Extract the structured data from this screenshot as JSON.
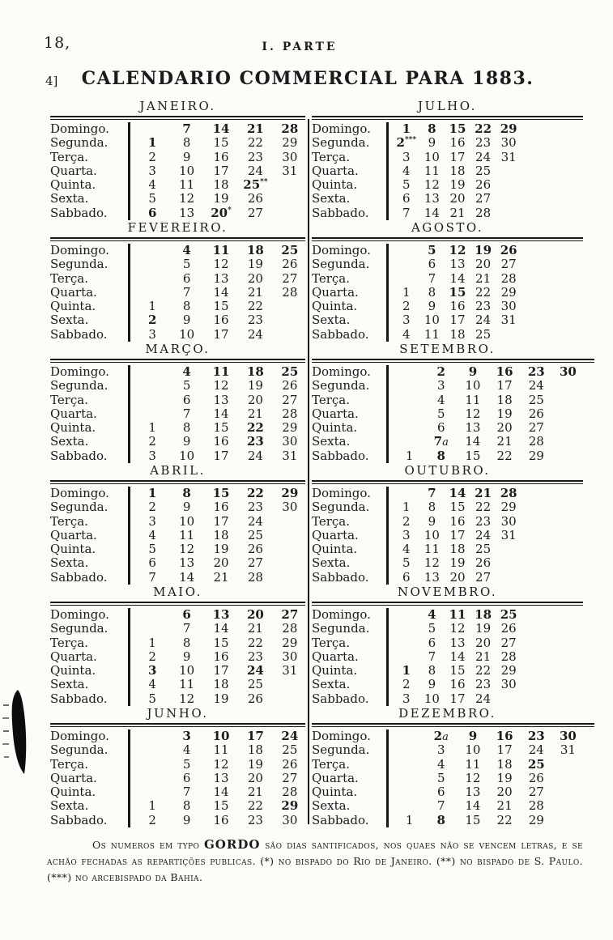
{
  "page": {
    "page_number": "18,",
    "part_header": "I.  PARTE",
    "margin_mark": "4]",
    "title": "CALENDARIO COMMERCIAL PARA 1883."
  },
  "calendar": {
    "day_labels": [
      "Domingo.",
      "Segunda.",
      "Terça.",
      "Quarta.",
      "Quinta.",
      "Sexta.",
      "Sabbado."
    ],
    "months": [
      {
        "id": "janeiro",
        "name": "JANEIRO.",
        "column": "left",
        "cols": 5,
        "rows": [
          [
            "",
            {
              "t": "7",
              "b": true
            },
            {
              "t": "14",
              "b": true
            },
            {
              "t": "21",
              "b": true
            },
            {
              "t": "28",
              "b": true
            }
          ],
          [
            {
              "t": "1",
              "b": true
            },
            "8",
            "15",
            "22",
            "29"
          ],
          [
            "2",
            "9",
            "16",
            "23",
            "30"
          ],
          [
            "3",
            "10",
            "17",
            "24",
            "31"
          ],
          [
            "4",
            "11",
            "18",
            {
              "t": "25",
              "b": true,
              "sup": "**"
            },
            ""
          ],
          [
            "5",
            "12",
            "19",
            "26",
            ""
          ],
          [
            {
              "t": "6",
              "b": true
            },
            "13",
            {
              "t": "20",
              "b": true,
              "sup": "*"
            },
            "27",
            ""
          ]
        ]
      },
      {
        "id": "fevereiro",
        "name": "FEVEREIRO.",
        "column": "left",
        "cols": 5,
        "rows": [
          [
            "",
            {
              "t": "4",
              "b": true
            },
            {
              "t": "11",
              "b": true
            },
            {
              "t": "18",
              "b": true
            },
            {
              "t": "25",
              "b": true
            }
          ],
          [
            "",
            "5",
            "12",
            "19",
            "26"
          ],
          [
            "",
            "6",
            "13",
            "20",
            "27"
          ],
          [
            "",
            "7",
            "14",
            "21",
            "28"
          ],
          [
            "1",
            "8",
            "15",
            "22",
            ""
          ],
          [
            {
              "t": "2",
              "b": true
            },
            "9",
            "16",
            "23",
            ""
          ],
          [
            "3",
            "10",
            "17",
            "24",
            ""
          ]
        ]
      },
      {
        "id": "marco",
        "name": "MARÇO.",
        "column": "left",
        "cols": 5,
        "rows": [
          [
            "",
            {
              "t": "4",
              "b": true
            },
            {
              "t": "11",
              "b": true
            },
            {
              "t": "18",
              "b": true
            },
            {
              "t": "25",
              "b": true
            }
          ],
          [
            "",
            "5",
            "12",
            "19",
            "26"
          ],
          [
            "",
            "6",
            "13",
            "20",
            "27"
          ],
          [
            "",
            "7",
            "14",
            "21",
            "28"
          ],
          [
            "1",
            "8",
            "15",
            {
              "t": "22",
              "b": true
            },
            "29"
          ],
          [
            "2",
            "9",
            "16",
            {
              "t": "23",
              "b": true
            },
            "30"
          ],
          [
            "3",
            "10",
            "17",
            "24",
            "31"
          ]
        ]
      },
      {
        "id": "abril",
        "name": "ABRIL.",
        "column": "left",
        "cols": 5,
        "rows": [
          [
            {
              "t": "1",
              "b": true
            },
            {
              "t": "8",
              "b": true
            },
            {
              "t": "15",
              "b": true
            },
            {
              "t": "22",
              "b": true
            },
            {
              "t": "29",
              "b": true
            }
          ],
          [
            "2",
            "9",
            "16",
            "23",
            "30"
          ],
          [
            "3",
            "10",
            "17",
            "24",
            ""
          ],
          [
            "4",
            "11",
            "18",
            "25",
            ""
          ],
          [
            "5",
            "12",
            "19",
            "26",
            ""
          ],
          [
            "6",
            "13",
            "20",
            "27",
            ""
          ],
          [
            "7",
            "14",
            "21",
            "28",
            ""
          ]
        ]
      },
      {
        "id": "maio",
        "name": "MAIO.",
        "column": "left",
        "cols": 5,
        "rows": [
          [
            "",
            {
              "t": "6",
              "b": true
            },
            {
              "t": "13",
              "b": true
            },
            {
              "t": "20",
              "b": true
            },
            {
              "t": "27",
              "b": true
            }
          ],
          [
            "",
            "7",
            "14",
            "21",
            "28"
          ],
          [
            "1",
            "8",
            "15",
            "22",
            "29"
          ],
          [
            "2",
            "9",
            "16",
            "23",
            "30"
          ],
          [
            {
              "t": "3",
              "b": true
            },
            "10",
            "17",
            {
              "t": "24",
              "b": true
            },
            "31"
          ],
          [
            "4",
            "11",
            "18",
            "25",
            ""
          ],
          [
            "5",
            "12",
            "19",
            "26",
            ""
          ]
        ]
      },
      {
        "id": "junho",
        "name": "JUNHO.",
        "column": "left",
        "cols": 5,
        "rows": [
          [
            "",
            {
              "t": "3",
              "b": true
            },
            {
              "t": "10",
              "b": true
            },
            {
              "t": "17",
              "b": true
            },
            {
              "t": "24",
              "b": true
            }
          ],
          [
            "",
            "4",
            "11",
            "18",
            "25"
          ],
          [
            "",
            "5",
            "12",
            "19",
            "26"
          ],
          [
            "",
            "6",
            "13",
            "20",
            "27"
          ],
          [
            "",
            "7",
            "14",
            "21",
            "28"
          ],
          [
            "1",
            "8",
            "15",
            "22",
            {
              "t": "29",
              "b": true
            }
          ],
          [
            "2",
            "9",
            "16",
            "23",
            "30"
          ]
        ]
      },
      {
        "id": "julho",
        "name": "JULHO.",
        "column": "right",
        "cols": 5,
        "rows": [
          [
            {
              "t": "1",
              "b": true
            },
            {
              "t": "8",
              "b": true
            },
            {
              "t": "15",
              "b": true
            },
            {
              "t": "22",
              "b": true
            },
            {
              "t": "29",
              "b": true
            }
          ],
          [
            {
              "t": "2",
              "b": true,
              "sup": "***"
            },
            "9",
            "16",
            "23",
            "30"
          ],
          [
            "3",
            "10",
            "17",
            "24",
            "31"
          ],
          [
            "4",
            "11",
            "18",
            "25",
            ""
          ],
          [
            "5",
            "12",
            "19",
            "26",
            ""
          ],
          [
            "6",
            "13",
            "20",
            "27",
            ""
          ],
          [
            "7",
            "14",
            "21",
            "28",
            ""
          ]
        ]
      },
      {
        "id": "agosto",
        "name": "AGOSTO.",
        "column": "right",
        "cols": 5,
        "rows": [
          [
            "",
            {
              "t": "5",
              "b": true
            },
            {
              "t": "12",
              "b": true
            },
            {
              "t": "19",
              "b": true
            },
            {
              "t": "26",
              "b": true
            }
          ],
          [
            "",
            "6",
            "13",
            "20",
            "27"
          ],
          [
            "",
            "7",
            "14",
            "21",
            "28"
          ],
          [
            "1",
            "8",
            {
              "t": "15",
              "b": true
            },
            "22",
            "29"
          ],
          [
            "2",
            "9",
            "16",
            "23",
            "30"
          ],
          [
            "3",
            "10",
            "17",
            "24",
            "31"
          ],
          [
            "4",
            "11",
            "18",
            "25",
            ""
          ]
        ]
      },
      {
        "id": "setembro",
        "name": "SETEMBRO.",
        "column": "right",
        "cols": 6,
        "rows": [
          [
            "",
            {
              "t": "2",
              "b": true
            },
            {
              "t": "9",
              "b": true
            },
            {
              "t": "16",
              "b": true
            },
            {
              "t": "23",
              "b": true
            },
            {
              "t": "30",
              "b": true
            }
          ],
          [
            "",
            "3",
            "10",
            "17",
            "24",
            ""
          ],
          [
            "",
            "4",
            "11",
            "18",
            "25",
            ""
          ],
          [
            "",
            "5",
            "12",
            "19",
            "26",
            ""
          ],
          [
            "",
            "6",
            "13",
            "20",
            "27",
            ""
          ],
          [
            "",
            {
              "t": "7",
              "b": true,
              "it": "a"
            },
            "14",
            "21",
            "28",
            ""
          ],
          [
            "1",
            {
              "t": "8",
              "b": true
            },
            "15",
            "22",
            "29",
            ""
          ]
        ]
      },
      {
        "id": "outubro",
        "name": "OUTUBRO.",
        "column": "right",
        "cols": 5,
        "rows": [
          [
            "",
            {
              "t": "7",
              "b": true
            },
            {
              "t": "14",
              "b": true
            },
            {
              "t": "21",
              "b": true
            },
            {
              "t": "28",
              "b": true
            }
          ],
          [
            "1",
            "8",
            "15",
            "22",
            "29"
          ],
          [
            "2",
            "9",
            "16",
            "23",
            "30"
          ],
          [
            "3",
            "10",
            "17",
            "24",
            "31"
          ],
          [
            "4",
            "11",
            "18",
            "25",
            ""
          ],
          [
            "5",
            "12",
            "19",
            "26",
            ""
          ],
          [
            "6",
            "13",
            "20",
            "27",
            ""
          ]
        ]
      },
      {
        "id": "novembro",
        "name": "NOVEMBRO.",
        "column": "right",
        "cols": 5,
        "rows": [
          [
            "",
            {
              "t": "4",
              "b": true
            },
            {
              "t": "11",
              "b": true
            },
            {
              "t": "18",
              "b": true
            },
            {
              "t": "25",
              "b": true
            }
          ],
          [
            "",
            "5",
            "12",
            "19",
            "26"
          ],
          [
            "",
            "6",
            "13",
            "20",
            "27"
          ],
          [
            "",
            "7",
            "14",
            "21",
            "28"
          ],
          [
            {
              "t": "1",
              "b": true
            },
            "8",
            "15",
            "22",
            "29"
          ],
          [
            "2",
            "9",
            "16",
            "23",
            "30"
          ],
          [
            "3",
            "10",
            "17",
            "24",
            ""
          ]
        ]
      },
      {
        "id": "dezembro",
        "name": "DEZEMBRO.",
        "column": "right",
        "cols": 6,
        "rows": [
          [
            "",
            {
              "t": "2",
              "b": true,
              "it": "a"
            },
            {
              "t": "9",
              "b": true
            },
            {
              "t": "16",
              "b": true
            },
            {
              "t": "23",
              "b": true
            },
            {
              "t": "30",
              "b": true
            }
          ],
          [
            "",
            "3",
            "10",
            "17",
            "24",
            "31"
          ],
          [
            "",
            "4",
            "11",
            "18",
            {
              "t": "25",
              "b": true
            },
            ""
          ],
          [
            "",
            "5",
            "12",
            "19",
            "26",
            ""
          ],
          [
            "",
            "6",
            "13",
            "20",
            "27",
            ""
          ],
          [
            "",
            "7",
            "14",
            "21",
            "28",
            ""
          ],
          [
            "1",
            {
              "t": "8",
              "b": true
            },
            "15",
            "22",
            "29",
            ""
          ]
        ]
      }
    ]
  },
  "footnote": {
    "lead": "Os numeros em typo ",
    "gordo": "GORDO",
    "rest": " são dias santificados, nos quaes não se vencem letras, e se achão fechadas as repartições publicas. ",
    "n1_sym": "(*)",
    "n1": " no bispado do Rio de Janeiro. ",
    "n2_sym": "(**)",
    "n2": " no bispado de S. Paulo. ",
    "n3_sym": "(***)",
    "n3": " no arcebispado da Bahia."
  },
  "ink_color": "#161616",
  "paper_color": "#fbfbf8"
}
